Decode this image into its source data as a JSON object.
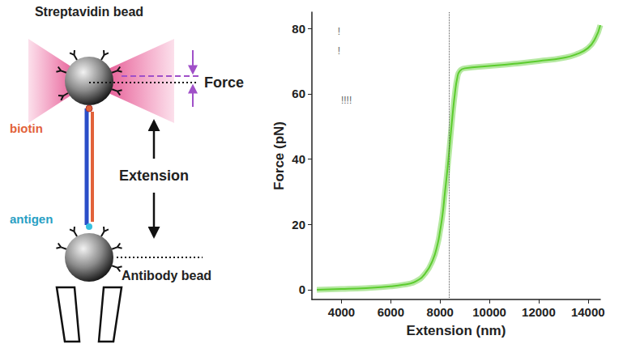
{
  "chart_data": {
    "type": "line",
    "x_label": "Extension (nm)",
    "y_label": "Force (pN)",
    "xlim": [
      2800,
      14500
    ],
    "xticks": [
      4000,
      6000,
      8000,
      10000,
      12000,
      14000
    ],
    "ylim": [
      -3,
      85
    ],
    "yticks": [
      0,
      20,
      40,
      60,
      80
    ],
    "grid": false,
    "color": "#5ccc2e",
    "x": [
      3000,
      4000,
      5000,
      6000,
      6500,
      7000,
      7400,
      7700,
      7900,
      8000,
      8100,
      8200,
      8300,
      8400,
      8500,
      8600,
      8700,
      8800,
      9000,
      10000,
      11000,
      12000,
      13000,
      13500,
      14000,
      14300,
      14500
    ],
    "values": [
      0,
      0.2,
      0.5,
      1,
      1.5,
      2.5,
      5,
      9,
      14,
      18,
      23,
      30,
      37,
      45,
      53,
      60,
      65,
      67,
      67.8,
      68.5,
      69.2,
      70,
      71,
      72,
      74,
      77,
      81
    ],
    "reference_line": {
      "x": 8350,
      "line_style": "dotted"
    },
    "annotations": [
      {
        "text": "!",
        "x": 3900,
        "y": 79
      },
      {
        "text": "!",
        "x": 3900,
        "y": 73
      },
      {
        "text": "!!!!",
        "x": 4200,
        "y": 58
      }
    ]
  },
  "diagram": {
    "labels": {
      "top_bead": "Streptavidin bead",
      "force": "Force",
      "biotin": "biotin",
      "antigen": "antigen",
      "extension": "Extension",
      "bottom_bead": "Antibody bead"
    }
  }
}
